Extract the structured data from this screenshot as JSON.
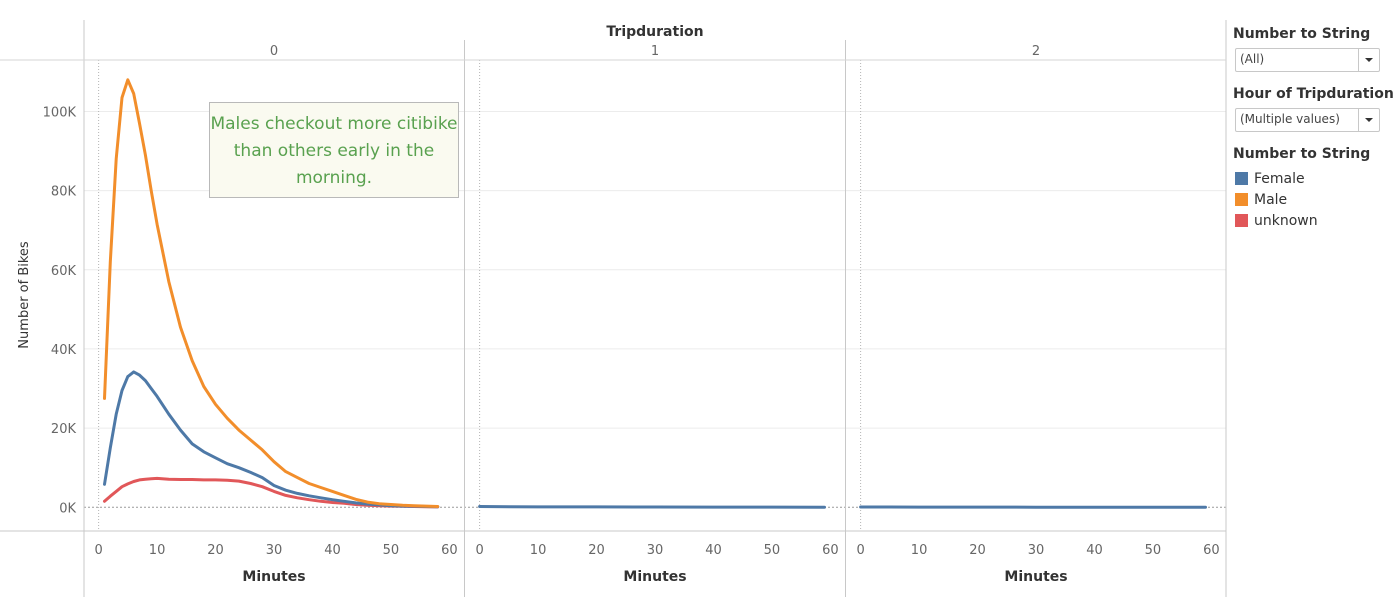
{
  "chart_data": {
    "type": "line",
    "title": "Tripduration",
    "panel_labels": [
      "0",
      "1",
      "2"
    ],
    "xlabel": "Minutes",
    "ylabel": "Number of Bikes",
    "x_ticks": [
      "0",
      "10",
      "20",
      "30",
      "40",
      "50",
      "60"
    ],
    "y_ticks": [
      "0K",
      "20K",
      "40K",
      "60K",
      "80K",
      "100K"
    ],
    "xlim": [
      -2.5,
      62.5
    ],
    "ylim": [
      -6000,
      113000
    ],
    "panels": [
      {
        "label": "0",
        "series": [
          {
            "name": "Male",
            "color": "#f28e2b",
            "x": [
              1,
              2,
              3,
              4,
              5,
              6,
              7,
              8,
              9,
              10,
              12,
              14,
              16,
              18,
              20,
              22,
              24,
              26,
              28,
              30,
              32,
              34,
              36,
              38,
              40,
              42,
              44,
              46,
              48,
              50,
              52,
              54,
              56,
              58
            ],
            "y": [
              27500,
              62000,
              88000,
              103500,
              108000,
              104500,
              97000,
              89000,
              80000,
              71500,
              57000,
              45500,
              37000,
              30500,
              26000,
              22500,
              19500,
              17000,
              14500,
              11500,
              9000,
              7500,
              6000,
              5000,
              4000,
              3000,
              2000,
              1300,
              900,
              700,
              500,
              400,
              300,
              200
            ]
          },
          {
            "name": "Female",
            "color": "#4e79a7",
            "x": [
              1,
              2,
              3,
              4,
              5,
              6,
              7,
              8,
              9,
              10,
              12,
              14,
              16,
              18,
              20,
              22,
              24,
              26,
              28,
              30,
              32,
              34,
              36,
              38,
              40,
              42,
              44,
              46,
              48,
              50,
              52,
              54,
              56,
              58
            ],
            "y": [
              5800,
              15000,
              23500,
              29500,
              33000,
              34200,
              33400,
              32000,
              30000,
              28000,
              23500,
              19500,
              16000,
              14000,
              12500,
              11000,
              10000,
              8800,
              7500,
              5500,
              4300,
              3500,
              2900,
              2400,
              1900,
              1500,
              1100,
              800,
              600,
              400,
              300,
              250,
              200,
              150
            ]
          },
          {
            "name": "unknown",
            "color": "#e15759",
            "x": [
              1,
              2,
              3,
              4,
              5,
              6,
              7,
              8,
              9,
              10,
              12,
              14,
              16,
              18,
              20,
              22,
              24,
              26,
              28,
              30,
              32,
              34,
              36,
              38,
              40,
              42,
              44,
              46,
              48,
              50,
              52,
              54,
              56,
              58
            ],
            "y": [
              1500,
              2800,
              4000,
              5200,
              5900,
              6500,
              6900,
              7100,
              7200,
              7300,
              7100,
              7000,
              7000,
              6900,
              6900,
              6800,
              6600,
              6000,
              5200,
              4000,
              3000,
              2400,
              1900,
              1500,
              1200,
              1000,
              700,
              500,
              400,
              300,
              250,
              200,
              150,
              100
            ]
          }
        ]
      },
      {
        "label": "1",
        "series": [
          {
            "name": "Female",
            "color": "#4e79a7",
            "x": [
              0,
              10,
              20,
              30,
              40,
              50,
              59
            ],
            "y": [
              200,
              100,
              80,
              60,
              40,
              30,
              20
            ]
          }
        ]
      },
      {
        "label": "2",
        "series": [
          {
            "name": "Female",
            "color": "#4e79a7",
            "x": [
              0,
              10,
              20,
              30,
              40,
              50,
              59
            ],
            "y": [
              60,
              40,
              30,
              20,
              15,
              10,
              10
            ]
          }
        ]
      }
    ],
    "annotation": "Males checkout more citibike than others early in the morning.",
    "legend_position": "right"
  },
  "filters": [
    {
      "title": "Number to String",
      "value": "(All)"
    },
    {
      "title": "Hour of Tripduration",
      "value": "(Multiple values)"
    }
  ],
  "legend": {
    "title": "Number to String",
    "items": [
      {
        "label": "Female",
        "color": "#4e79a7"
      },
      {
        "label": "Male",
        "color": "#f28e2b"
      },
      {
        "label": "unknown",
        "color": "#e15759"
      }
    ]
  }
}
